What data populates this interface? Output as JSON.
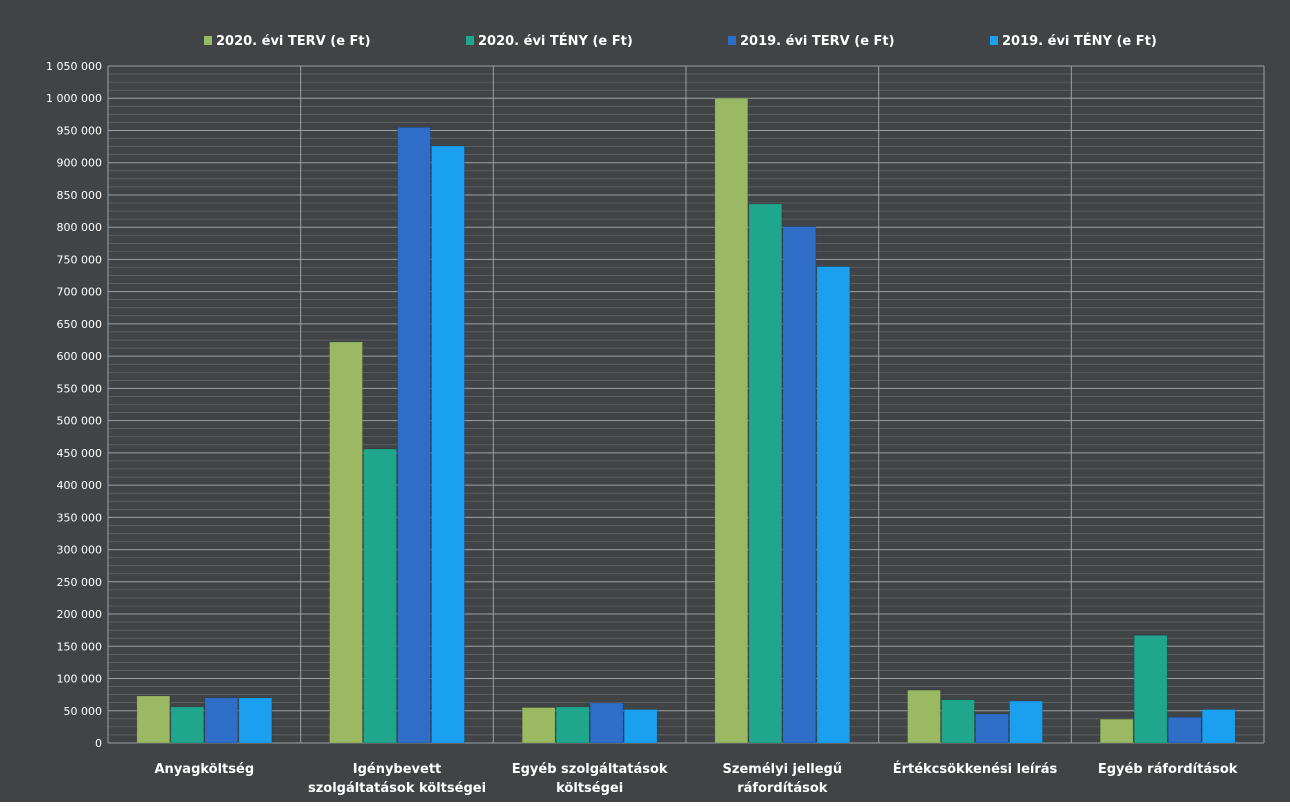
{
  "chart_data": {
    "type": "bar",
    "title": "",
    "xlabel": "",
    "ylabel": "",
    "legend_position": "top",
    "grid": true,
    "ylim": [
      0,
      1050000
    ],
    "yticks": [
      0,
      50000,
      100000,
      150000,
      200000,
      250000,
      300000,
      350000,
      400000,
      450000,
      500000,
      550000,
      600000,
      650000,
      700000,
      750000,
      800000,
      850000,
      900000,
      950000,
      1000000,
      1050000
    ],
    "ytick_labels": [
      "0",
      "50 000",
      "100 000",
      "150 000",
      "200 000",
      "250 000",
      "300 000",
      "350 000",
      "400 000",
      "450 000",
      "500 000",
      "550 000",
      "600 000",
      "650 000",
      "700 000",
      "750 000",
      "800 000",
      "850 000",
      "900 000",
      "950 000",
      "1 000 000",
      "1 050 000"
    ],
    "categories": [
      [
        "Anyagköltség"
      ],
      [
        "Igénybevett",
        "szolgáltatások költségei"
      ],
      [
        "Egyéb szolgáltatások",
        "költségei"
      ],
      [
        "Személyi jellegű",
        "ráfordítások"
      ],
      [
        "Értékcsökkenési leírás"
      ],
      [
        "Egyéb ráfordítások"
      ]
    ],
    "series": [
      {
        "name": "2020. évi TERV (e Ft)",
        "color": "#9bb862",
        "values": [
          73000,
          622000,
          55000,
          1000000,
          82000,
          37000
        ]
      },
      {
        "name": "2020. évi TÉNY (e Ft)",
        "color": "#21a68e",
        "values": [
          56000,
          456000,
          56000,
          836000,
          67000,
          167000
        ]
      },
      {
        "name": "2019. évi TERV (e Ft)",
        "color": "#2f6ec8",
        "values": [
          70000,
          955000,
          62000,
          801000,
          45000,
          40000
        ]
      },
      {
        "name": "2019. évi TÉNY (e Ft)",
        "color": "#1aa0ee",
        "values": [
          70000,
          926000,
          52000,
          739000,
          65000,
          52000
        ]
      }
    ],
    "colors": {
      "background": "#404447",
      "grid": "#8e9296",
      "text": "#ffffff"
    }
  }
}
